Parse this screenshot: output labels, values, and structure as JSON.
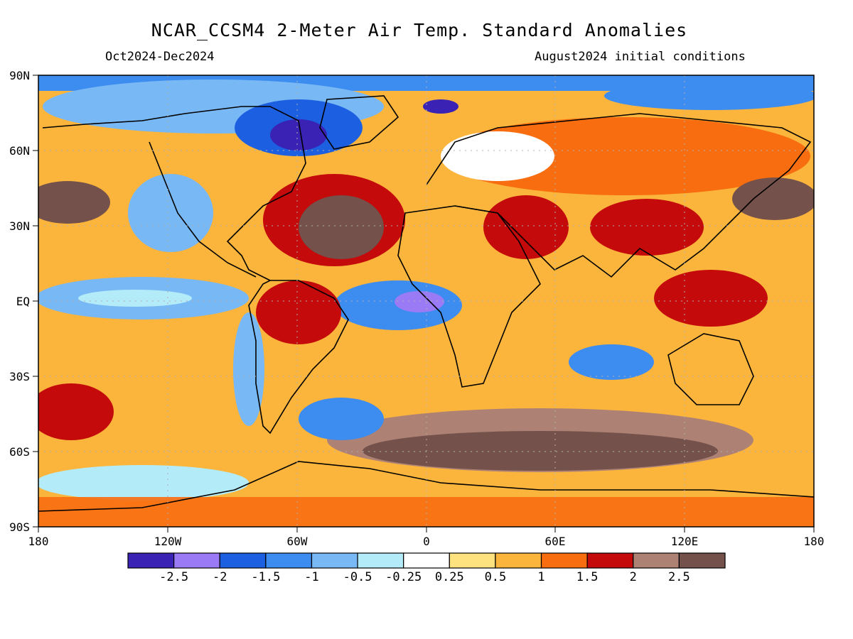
{
  "title": "NCAR_CCSM4 2-Meter Air Temp. Standard Anomalies",
  "period": "Oct2024-Dec2024",
  "initial_conditions": "August2024 initial conditions",
  "lat_labels": [
    "90N",
    "60N",
    "30N",
    "EQ",
    "30S",
    "60S",
    "90S"
  ],
  "lon_labels": [
    "180",
    "120W",
    "60W",
    "0",
    "60E",
    "120E",
    "180"
  ],
  "colorbar": {
    "colors": [
      "#3a22b5",
      "#9a7bf5",
      "#1c5fe0",
      "#3d8cf0",
      "#78b8f5",
      "#b3ecf8",
      "#ffffff",
      "#fee27f",
      "#fbb53d",
      "#f86d0f",
      "#c40a0a",
      "#ad8275",
      "#74514a"
    ],
    "tick_labels": [
      "-2.5",
      "-2",
      "-1.5",
      "-1",
      "-0.5",
      "-0.25",
      "0.25",
      "0.5",
      "1",
      "1.5",
      "2",
      "2.5"
    ]
  }
}
